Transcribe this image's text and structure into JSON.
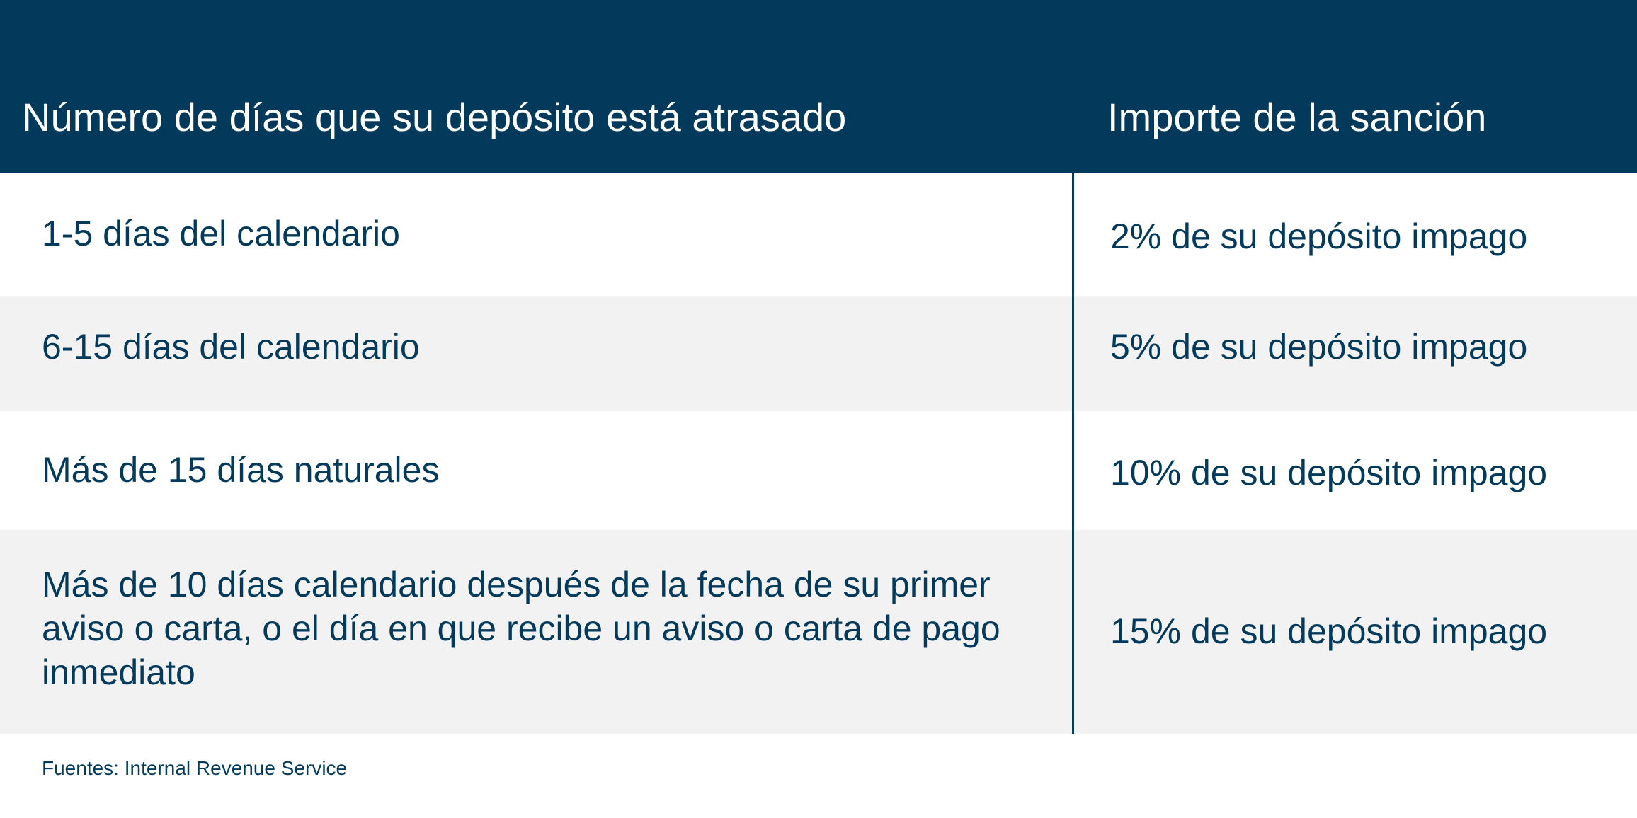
{
  "table": {
    "headers": {
      "days": "Número de días que su depósito está atrasado",
      "penalty": "Importe de la sanción"
    },
    "rows": [
      {
        "days": "1-5 días del calendario",
        "penalty": "2% de su depósito impago"
      },
      {
        "days": "6-15 días del calendario",
        "penalty": "5% de su depósito impago"
      },
      {
        "days": "Más de 15 días naturales",
        "penalty": "10% de su depósito impago"
      },
      {
        "days": "Más de 10 días calendario después de la fecha de su primer aviso o carta, o el día en que recibe un aviso o carta de pago inmediato",
        "penalty": "15% de su depósito impago"
      }
    ]
  },
  "footnote": "Fuentes: Internal Revenue Service",
  "colors": {
    "header_background": "#033a5c",
    "header_text": "#ffffff",
    "body_text": "#033a5c",
    "stripe_background": "#f2f2f2",
    "divider": "#033a5c"
  }
}
